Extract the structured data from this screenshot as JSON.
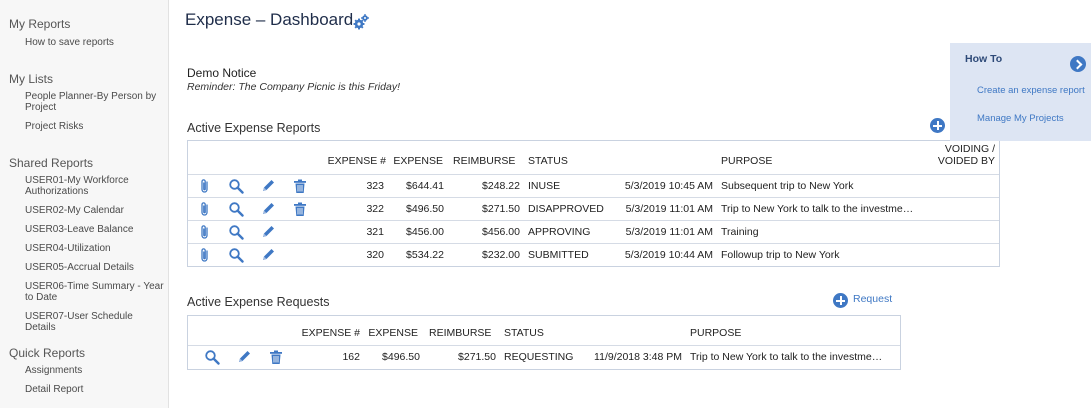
{
  "sidebar": {
    "my_reports": {
      "heading": "My Reports",
      "items": [
        "How to save reports"
      ]
    },
    "my_lists": {
      "heading": "My Lists",
      "items": [
        "People Planner-By Person by Project",
        "Project Risks"
      ]
    },
    "shared_reports": {
      "heading": "Shared Reports",
      "items": [
        "USER01-My Workforce Authorizations",
        "USER02-My Calendar",
        "USER03-Leave Balance",
        "USER04-Utilization",
        "USER05-Accrual Details",
        "USER06-Time Summary - Year to Date",
        "USER07-User Schedule Details"
      ]
    },
    "quick_reports": {
      "heading": "Quick Reports",
      "items": [
        "Assignments",
        "Detail Report"
      ]
    }
  },
  "header": {
    "title": "Expense – Dashboard",
    "settings_icon": "gears-icon"
  },
  "notice": {
    "title": "Demo Notice",
    "text": "Reminder: The Company Picnic is this Friday!"
  },
  "reports": {
    "title": "Active Expense Reports",
    "columns": [
      "EXPENSE #",
      "EXPENSE",
      "REIMBURSE",
      "STATUS",
      "PURPOSE",
      "VOIDING /",
      "VOIDED BY"
    ],
    "rows": [
      {
        "num": "323",
        "expense": "$644.41",
        "reimburse": "$248.22",
        "status": "INUSE",
        "date": "5/3/2019 10:45 AM",
        "purpose": "Subsequent trip to New York",
        "deletable": true
      },
      {
        "num": "322",
        "expense": "$496.50",
        "reimburse": "$271.50",
        "status": "DISAPPROVED",
        "date": "5/3/2019 11:01 AM",
        "purpose": "Trip to New York to talk to the investme…",
        "deletable": true
      },
      {
        "num": "321",
        "expense": "$456.00",
        "reimburse": "$456.00",
        "status": "APPROVING",
        "date": "5/3/2019 11:01 AM",
        "purpose": "Training",
        "deletable": false
      },
      {
        "num": "320",
        "expense": "$534.22",
        "reimburse": "$232.00",
        "status": "SUBMITTED",
        "date": "5/3/2019 10:44 AM",
        "purpose": "Followup trip to New York",
        "deletable": false
      }
    ]
  },
  "requests": {
    "title": "Active Expense Requests",
    "add_label": "Request",
    "columns": [
      "EXPENSE #",
      "EXPENSE",
      "REIMBURSE",
      "STATUS",
      "PURPOSE"
    ],
    "rows": [
      {
        "num": "162",
        "expense": "$496.50",
        "reimburse": "$271.50",
        "status": "REQUESTING",
        "date": "11/9/2018 3:48 PM",
        "purpose": "Trip to New York to talk to the investme…"
      }
    ]
  },
  "howto": {
    "title": "How To",
    "links": [
      "Create an expense report",
      "Manage My Projects"
    ]
  },
  "colors": {
    "accent": "#3f78c4",
    "title": "#1f2d4a",
    "panel": "#dde5f3",
    "border": "#c9d2e0"
  }
}
